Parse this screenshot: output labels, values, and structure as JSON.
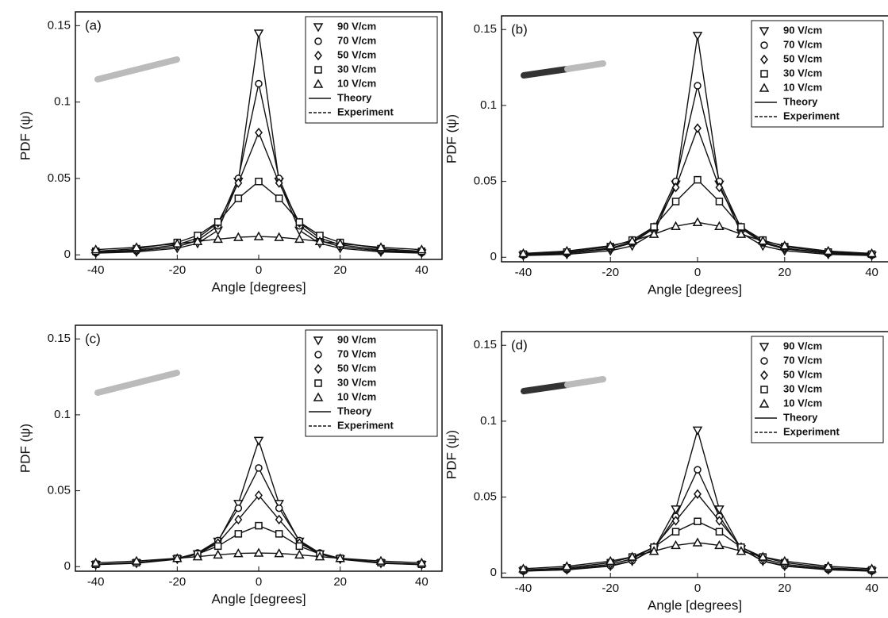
{
  "chart_data": [
    {
      "type": "line",
      "title": "(a)",
      "x_label": "Angle [degrees]",
      "y_label": "PDF (ψ)",
      "xlim": [
        -45,
        45
      ],
      "ylim": [
        -0.003,
        0.159
      ],
      "xticks": [
        -40,
        -20,
        0,
        20,
        40
      ],
      "yticks": [
        0,
        0.05,
        0.1,
        0.15
      ],
      "x": [
        -40,
        -30,
        -20,
        -15,
        -10,
        -5,
        0,
        5,
        10,
        15,
        20,
        30,
        40
      ],
      "series": [
        {
          "name": "90 V/cm",
          "marker": "triangle-down",
          "color": "#111",
          "values": [
            0.0011,
            0.0019,
            0.0043,
            0.0075,
            0.016,
            0.048,
            0.145,
            0.048,
            0.016,
            0.0075,
            0.0043,
            0.0019,
            0.0011
          ]
        },
        {
          "name": "70 V/cm",
          "marker": "circle",
          "color": "#111",
          "values": [
            0.0014,
            0.0025,
            0.0054,
            0.0093,
            0.019,
            0.05,
            0.112,
            0.05,
            0.019,
            0.0093,
            0.0054,
            0.0025,
            0.0014
          ]
        },
        {
          "name": "50 V/cm",
          "marker": "diamond",
          "color": "#111",
          "values": [
            0.0018,
            0.0031,
            0.0066,
            0.011,
            0.021,
            0.047,
            0.08,
            0.047,
            0.021,
            0.011,
            0.0066,
            0.0031,
            0.0018
          ]
        },
        {
          "name": "30 V/cm",
          "marker": "square",
          "color": "#111",
          "values": [
            0.0023,
            0.004,
            0.0081,
            0.0127,
            0.0215,
            0.037,
            0.048,
            0.037,
            0.0215,
            0.0127,
            0.0081,
            0.004,
            0.0023
          ]
        },
        {
          "name": "10 V/cm",
          "marker": "triangle-up",
          "color": "#111",
          "values": [
            0.0034,
            0.0049,
            0.0073,
            0.0088,
            0.0103,
            0.0115,
            0.012,
            0.0115,
            0.0103,
            0.0088,
            0.0073,
            0.0049,
            0.0034
          ]
        }
      ],
      "line_styles": [
        {
          "name": "Theory",
          "dash": "none"
        },
        {
          "name": "Experiment",
          "dash": "4 2"
        }
      ]
    },
    {
      "type": "line",
      "title": "(b)",
      "x_label": "Angle [degrees]",
      "y_label": "PDF (ψ)",
      "xlim": [
        -45,
        45
      ],
      "ylim": [
        -0.003,
        0.159
      ],
      "xticks": [
        -40,
        -20,
        0,
        20,
        40
      ],
      "yticks": [
        0,
        0.05,
        0.1,
        0.15
      ],
      "x": [
        -40,
        -30,
        -20,
        -15,
        -10,
        -5,
        0,
        5,
        10,
        15,
        20,
        30,
        40
      ],
      "series": [
        {
          "name": "90 V/cm",
          "marker": "triangle-down",
          "color": "#111",
          "values": [
            0.0011,
            0.0019,
            0.0043,
            0.0075,
            0.016,
            0.048,
            0.146,
            0.048,
            0.016,
            0.0075,
            0.0043,
            0.0019,
            0.0011
          ]
        },
        {
          "name": "70 V/cm",
          "marker": "circle",
          "color": "#111",
          "values": [
            0.0014,
            0.0025,
            0.0054,
            0.0094,
            0.019,
            0.05,
            0.113,
            0.05,
            0.019,
            0.0094,
            0.0054,
            0.0025,
            0.0014
          ]
        },
        {
          "name": "50 V/cm",
          "marker": "diamond",
          "color": "#111",
          "values": [
            0.0016,
            0.0028,
            0.006,
            0.0101,
            0.0198,
            0.046,
            0.085,
            0.046,
            0.0198,
            0.0101,
            0.006,
            0.0028,
            0.0016
          ]
        },
        {
          "name": "30 V/cm",
          "marker": "square",
          "color": "#111",
          "values": [
            0.002,
            0.0034,
            0.007,
            0.0113,
            0.02,
            0.0367,
            0.051,
            0.0367,
            0.02,
            0.0113,
            0.007,
            0.0034,
            0.002
          ]
        },
        {
          "name": "10 V/cm",
          "marker": "triangle-up",
          "color": "#111",
          "values": [
            0.0025,
            0.0041,
            0.0076,
            0.0107,
            0.0152,
            0.0204,
            0.023,
            0.0204,
            0.0152,
            0.0107,
            0.0076,
            0.0041,
            0.0025
          ]
        }
      ],
      "line_styles": [
        {
          "name": "Theory",
          "dash": "none"
        },
        {
          "name": "Experiment",
          "dash": "4 2"
        }
      ]
    },
    {
      "type": "line",
      "title": "(c)",
      "x_label": "Angle [degrees]",
      "y_label": "PDF (ψ)",
      "xlim": [
        -45,
        45
      ],
      "ylim": [
        -0.003,
        0.159
      ],
      "xticks": [
        -40,
        -20,
        0,
        20,
        40
      ],
      "yticks": [
        0,
        0.05,
        0.1,
        0.15
      ],
      "x": [
        -40,
        -30,
        -20,
        -15,
        -10,
        -5,
        0,
        5,
        10,
        15,
        20,
        30,
        40
      ],
      "series": [
        {
          "name": "90 V/cm",
          "marker": "triangle-down",
          "color": "#111",
          "values": [
            0.0013,
            0.0022,
            0.0049,
            0.0083,
            0.0166,
            0.0415,
            0.083,
            0.0415,
            0.0166,
            0.0083,
            0.0049,
            0.0022,
            0.0013
          ]
        },
        {
          "name": "70 V/cm",
          "marker": "circle",
          "color": "#111",
          "values": [
            0.0014,
            0.0025,
            0.0054,
            0.009,
            0.0172,
            0.0385,
            0.065,
            0.0385,
            0.0172,
            0.009,
            0.0054,
            0.0025,
            0.0014
          ]
        },
        {
          "name": "50 V/cm",
          "marker": "diamond",
          "color": "#111",
          "values": [
            0.0014,
            0.0024,
            0.0051,
            0.0084,
            0.0155,
            0.031,
            0.047,
            0.031,
            0.0155,
            0.0084,
            0.0051,
            0.0024,
            0.0014
          ]
        },
        {
          "name": "30 V/cm",
          "marker": "square",
          "color": "#111",
          "values": [
            0.0016,
            0.0027,
            0.0054,
            0.0083,
            0.0135,
            0.0216,
            0.027,
            0.0216,
            0.0135,
            0.0083,
            0.0054,
            0.0027,
            0.0016
          ]
        },
        {
          "name": "10 V/cm",
          "marker": "triangle-up",
          "color": "#111",
          "values": [
            0.0025,
            0.0037,
            0.0055,
            0.0066,
            0.0078,
            0.0087,
            0.009,
            0.0087,
            0.0078,
            0.0066,
            0.0055,
            0.0037,
            0.0025
          ]
        }
      ],
      "line_styles": [
        {
          "name": "Theory",
          "dash": "none"
        },
        {
          "name": "Experiment",
          "dash": "4 2"
        }
      ]
    },
    {
      "type": "line",
      "title": "(d)",
      "x_label": "Angle [degrees]",
      "y_label": "PDF (ψ)",
      "xlim": [
        -45,
        45
      ],
      "ylim": [
        -0.003,
        0.159
      ],
      "xticks": [
        -40,
        -20,
        0,
        20,
        40
      ],
      "yticks": [
        0,
        0.05,
        0.1,
        0.15
      ],
      "x": [
        -40,
        -30,
        -20,
        -15,
        -10,
        -5,
        0,
        5,
        10,
        15,
        20,
        30,
        40
      ],
      "series": [
        {
          "name": "90 V/cm",
          "marker": "triangle-down",
          "color": "#111",
          "values": [
            0.0012,
            0.0021,
            0.0045,
            0.0078,
            0.0158,
            0.042,
            0.094,
            0.042,
            0.0158,
            0.0078,
            0.0045,
            0.0021,
            0.0012
          ]
        },
        {
          "name": "70 V/cm",
          "marker": "circle",
          "color": "#111",
          "values": [
            0.0013,
            0.0022,
            0.0048,
            0.0081,
            0.0158,
            0.0372,
            0.068,
            0.0372,
            0.0158,
            0.0081,
            0.0048,
            0.0022,
            0.0013
          ]
        },
        {
          "name": "50 V/cm",
          "marker": "diamond",
          "color": "#111",
          "values": [
            0.0015,
            0.0027,
            0.0057,
            0.0093,
            0.0171,
            0.0344,
            0.052,
            0.0344,
            0.0171,
            0.0093,
            0.0057,
            0.0027,
            0.0015
          ]
        },
        {
          "name": "30 V/cm",
          "marker": "square",
          "color": "#111",
          "values": [
            0.002,
            0.0034,
            0.0068,
            0.0105,
            0.017,
            0.0272,
            0.034,
            0.0272,
            0.017,
            0.0105,
            0.0068,
            0.0034,
            0.002
          ]
        },
        {
          "name": "10 V/cm",
          "marker": "triangle-up",
          "color": "#111",
          "values": [
            0.0028,
            0.0044,
            0.0078,
            0.0106,
            0.0144,
            0.0182,
            0.02,
            0.0182,
            0.0144,
            0.0106,
            0.0078,
            0.0044,
            0.0028
          ]
        }
      ],
      "line_styles": [
        {
          "name": "Theory",
          "dash": "none"
        },
        {
          "name": "Experiment",
          "dash": "4 2"
        }
      ]
    }
  ]
}
